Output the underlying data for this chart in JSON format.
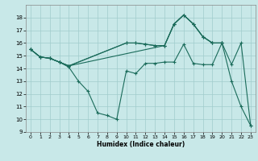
{
  "xlabel": "Humidex (Indice chaleur)",
  "bg_color": "#c8e8e8",
  "grid_color": "#a0cccc",
  "line_color": "#1a6b5a",
  "xlim": [
    -0.5,
    23.5
  ],
  "ylim": [
    9,
    19
  ],
  "xticks": [
    0,
    1,
    2,
    3,
    4,
    5,
    6,
    7,
    8,
    9,
    10,
    11,
    12,
    13,
    14,
    15,
    16,
    17,
    18,
    19,
    20,
    21,
    22,
    23
  ],
  "yticks": [
    9,
    10,
    11,
    12,
    13,
    14,
    15,
    16,
    17,
    18
  ],
  "series": [
    {
      "x": [
        0,
        1,
        2,
        3,
        4,
        5,
        6,
        7,
        8,
        9,
        10,
        11,
        12,
        13,
        14,
        15,
        16,
        17,
        18,
        19,
        20,
        21,
        22,
        23
      ],
      "y": [
        15.5,
        14.9,
        14.8,
        14.5,
        14.1,
        13.0,
        12.2,
        10.5,
        10.3,
        10.0,
        13.8,
        13.6,
        14.4,
        14.4,
        14.5,
        14.5,
        15.9,
        14.4,
        14.3,
        14.3,
        16.0,
        13.0,
        11.0,
        9.5
      ]
    },
    {
      "x": [
        0,
        1,
        2,
        3,
        4,
        10,
        11,
        12,
        13,
        14,
        15,
        16,
        17,
        18,
        19,
        20,
        21,
        22,
        23
      ],
      "y": [
        15.5,
        14.9,
        14.8,
        14.5,
        14.2,
        16.0,
        16.0,
        15.9,
        15.8,
        15.8,
        17.5,
        18.2,
        17.5,
        16.5,
        16.0,
        16.0,
        14.3,
        16.0,
        9.5
      ]
    },
    {
      "x": [
        0,
        1,
        2,
        3,
        4,
        10,
        11,
        12,
        13,
        14,
        15,
        16,
        17,
        18,
        19,
        20
      ],
      "y": [
        15.5,
        14.9,
        14.8,
        14.5,
        14.2,
        16.0,
        16.0,
        15.9,
        15.8,
        15.8,
        17.5,
        18.2,
        17.5,
        16.5,
        16.0,
        16.0
      ]
    },
    {
      "x": [
        0,
        1,
        2,
        3,
        4,
        14,
        15,
        16,
        17,
        18,
        19,
        20
      ],
      "y": [
        15.5,
        14.9,
        14.8,
        14.5,
        14.2,
        15.8,
        17.5,
        18.2,
        17.5,
        16.5,
        16.0,
        16.0
      ]
    }
  ]
}
